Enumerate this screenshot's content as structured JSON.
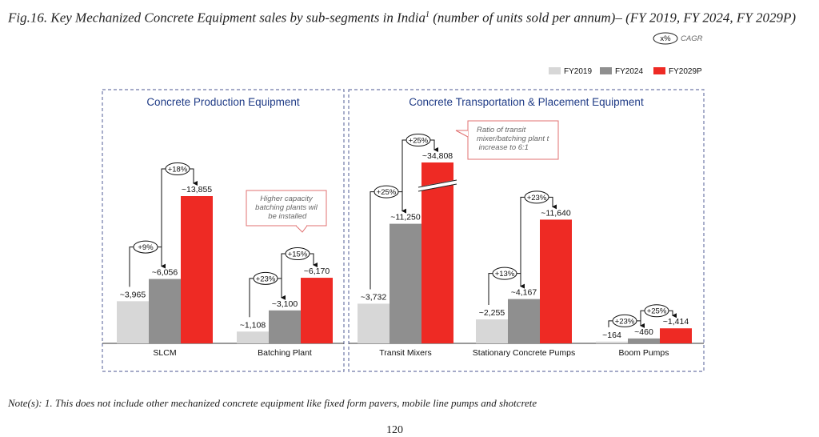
{
  "figure": {
    "title_main": "Fig.16. Key Mechanized Concrete Equipment sales by sub-segments in India",
    "title_sup": "1",
    "title_tail": " (number of units sold per annum)– (FY 2019, FY 2024, FY 2029P)",
    "cagr_key_symbol": "x%",
    "cagr_key_label": "CAGR",
    "footnote": "Note(s): 1. This does not include other mechanized concrete equipment like fixed form pavers, mobile line pumps and shotcrete",
    "page_number": "120"
  },
  "chart_data": {
    "type": "bar",
    "series": [
      {
        "name": "FY2019",
        "color": "#d7d7d7",
        "values": [
          3965,
          1108,
          3732,
          2255,
          164
        ]
      },
      {
        "name": "FY2024",
        "color": "#8f8f8f",
        "values": [
          6056,
          3100,
          11250,
          4167,
          460
        ]
      },
      {
        "name": "FY2029P",
        "color": "#ee2a24",
        "values": [
          13855,
          6170,
          34808,
          11640,
          1414
        ]
      }
    ],
    "categories": [
      "SLCM",
      "Batching Plant",
      "Transit Mixers",
      "Stationary Concrete Pumps",
      "Boom Pumps"
    ],
    "value_labels": [
      [
        "~3,965",
        "~6,056",
        "~13,855"
      ],
      [
        "~1,108",
        "~3,100",
        "~6,170"
      ],
      [
        "~3,732",
        "~11,250",
        "~34,808"
      ],
      [
        "~2,255",
        "~4,167",
        "~11,640"
      ],
      [
        "~164",
        "~460",
        "~1,414"
      ]
    ],
    "cagr": [
      [
        "+9%",
        "+18%"
      ],
      [
        "+23%",
        "+15%"
      ],
      [
        "+25%",
        "+25%"
      ],
      [
        "+13%",
        "+23%"
      ],
      [
        "+23%",
        "+25%"
      ]
    ],
    "panels": [
      {
        "title": "Concrete Production Equipment",
        "categories": [
          "SLCM",
          "Batching Plant"
        ]
      },
      {
        "title": "Concrete Transportation & Placement Equipment",
        "categories": [
          "Transit Mixers",
          "Stationary Concrete Pumps",
          "Boom Pumps"
        ]
      }
    ],
    "annotations": [
      "Higher capacity batching plants will be installed",
      "Ratio of transit mixer/batching plant to increase to 6:1"
    ],
    "axis_break": "FY2029P Transit Mixers bar is truncated (axis break)",
    "legend_position": "top-right"
  }
}
